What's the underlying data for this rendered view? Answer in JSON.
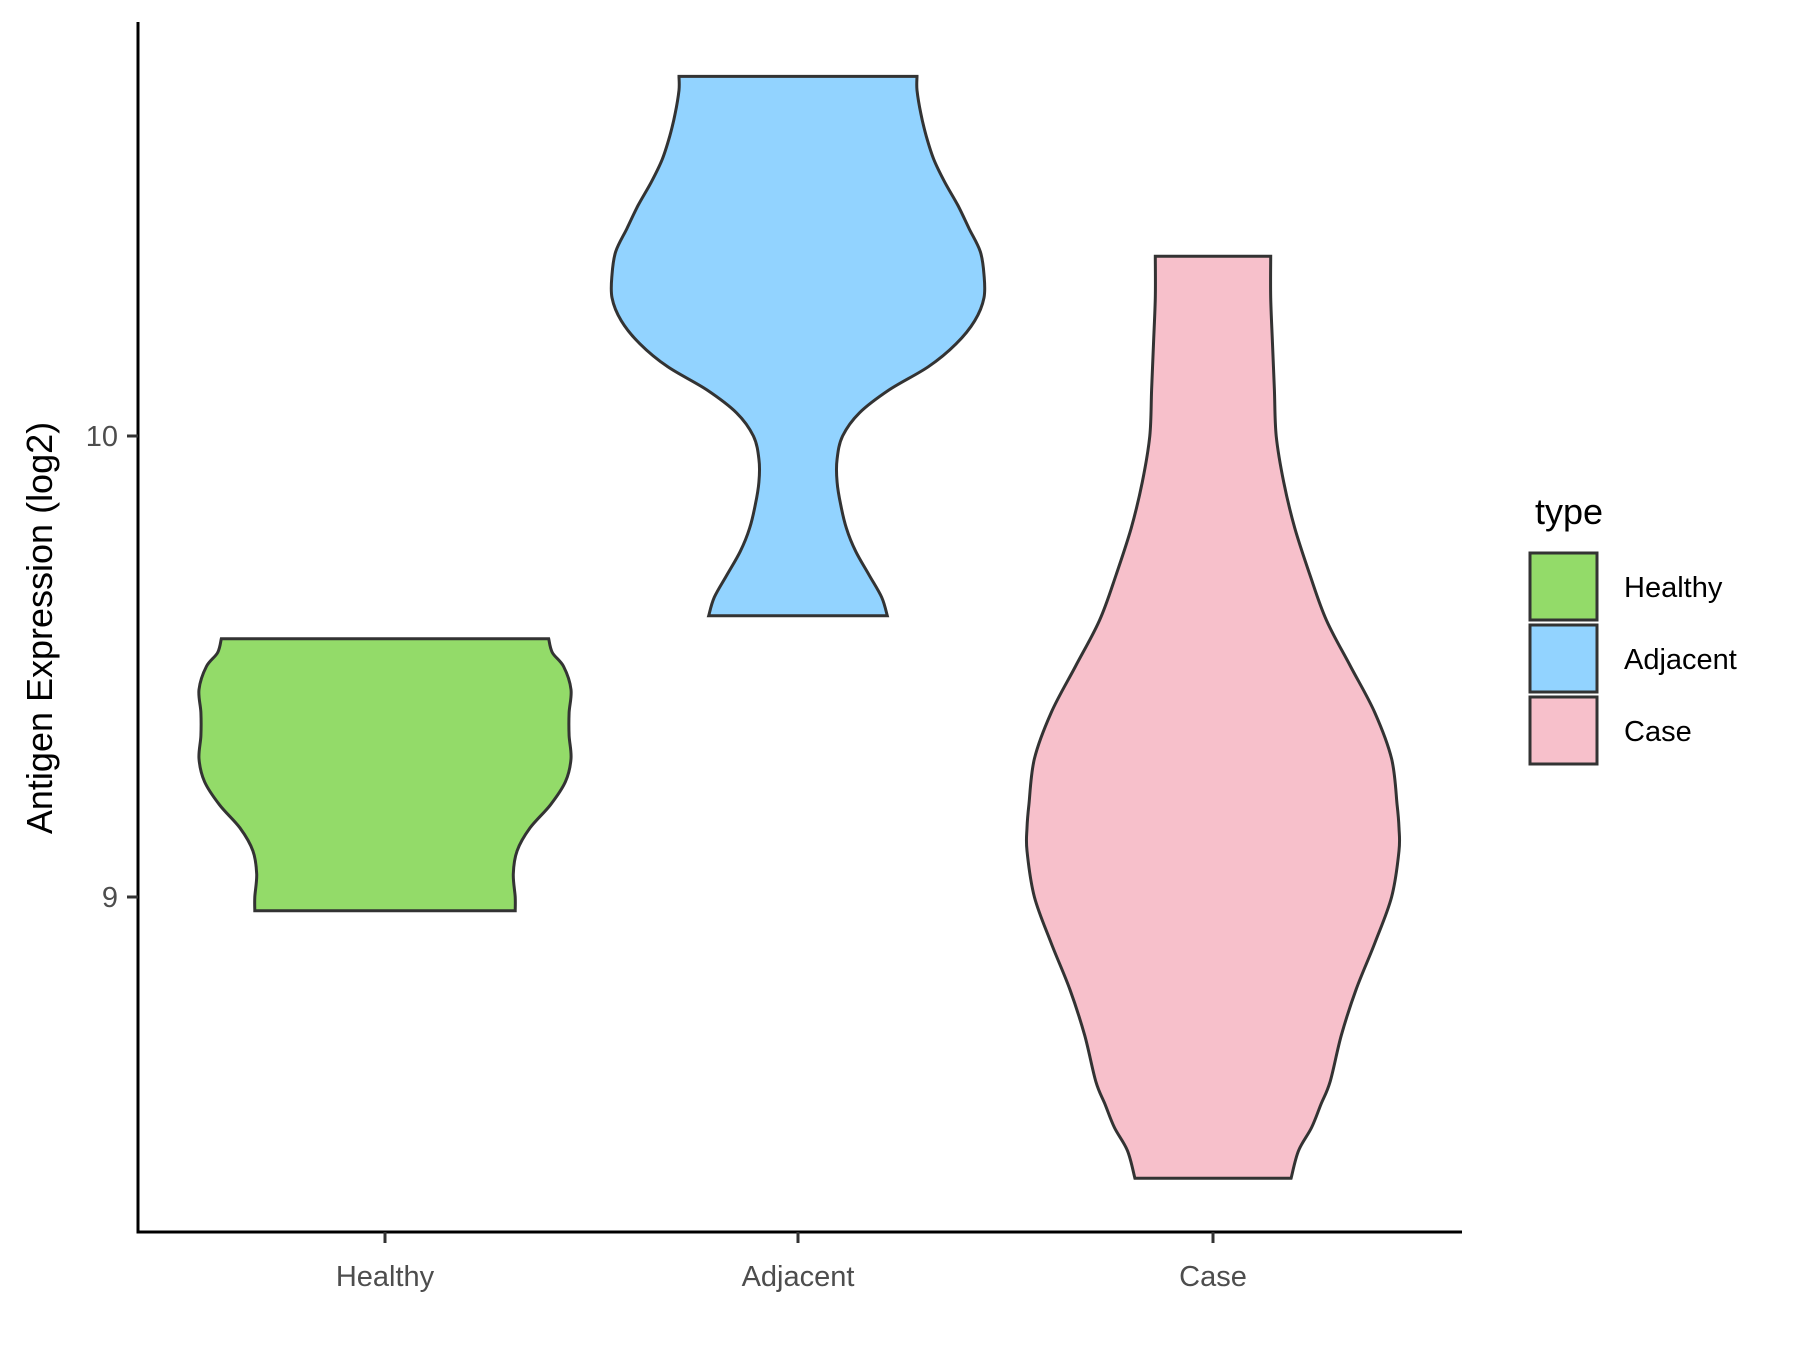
{
  "chart_data": {
    "type": "violin",
    "title": "",
    "xlabel": "",
    "ylabel": "Antigen Expression (log2)",
    "ylim": [
      8.27,
      10.89
    ],
    "yticks": [
      9,
      10
    ],
    "categories": [
      "Healthy",
      "Adjacent",
      "Case"
    ],
    "legend": {
      "title": "type",
      "placement": "right",
      "entries": [
        "Healthy",
        "Adjacent",
        "Case"
      ]
    },
    "colors": {
      "Healthy": "#93DB69",
      "Adjacent": "#92D3FF",
      "Case": "#F7C0CB",
      "outline": "#333333"
    },
    "violins": [
      {
        "category": "Healthy",
        "min": 8.97,
        "max": 9.56,
        "profile": [
          [
            8.97,
            0.7
          ],
          [
            9.0,
            0.7
          ],
          [
            9.05,
            0.69
          ],
          [
            9.1,
            0.71
          ],
          [
            9.15,
            0.78
          ],
          [
            9.2,
            0.89
          ],
          [
            9.25,
            0.97
          ],
          [
            9.3,
            1.0
          ],
          [
            9.35,
            0.99
          ],
          [
            9.4,
            0.99
          ],
          [
            9.45,
            1.0
          ],
          [
            9.5,
            0.96
          ],
          [
            9.53,
            0.9
          ],
          [
            9.56,
            0.88
          ]
        ]
      },
      {
        "category": "Adjacent",
        "min": 9.61,
        "max": 10.78,
        "profile": [
          [
            9.61,
            0.48
          ],
          [
            9.65,
            0.45
          ],
          [
            9.7,
            0.38
          ],
          [
            9.75,
            0.31
          ],
          [
            9.8,
            0.26
          ],
          [
            9.85,
            0.23
          ],
          [
            9.9,
            0.21
          ],
          [
            9.95,
            0.21
          ],
          [
            10.0,
            0.24
          ],
          [
            10.05,
            0.33
          ],
          [
            10.1,
            0.49
          ],
          [
            10.15,
            0.7
          ],
          [
            10.2,
            0.85
          ],
          [
            10.25,
            0.95
          ],
          [
            10.3,
            1.0
          ],
          [
            10.35,
            1.0
          ],
          [
            10.4,
            0.98
          ],
          [
            10.45,
            0.92
          ],
          [
            10.5,
            0.86
          ],
          [
            10.55,
            0.79
          ],
          [
            10.6,
            0.73
          ],
          [
            10.65,
            0.69
          ],
          [
            10.7,
            0.66
          ],
          [
            10.75,
            0.64
          ],
          [
            10.78,
            0.64
          ]
        ]
      },
      {
        "category": "Case",
        "min": 8.39,
        "max": 10.39,
        "profile": [
          [
            8.39,
            0.42
          ],
          [
            8.45,
            0.46
          ],
          [
            8.5,
            0.53
          ],
          [
            8.55,
            0.58
          ],
          [
            8.6,
            0.63
          ],
          [
            8.7,
            0.69
          ],
          [
            8.8,
            0.77
          ],
          [
            8.9,
            0.87
          ],
          [
            9.0,
            0.96
          ],
          [
            9.1,
            1.0
          ],
          [
            9.15,
            1.0
          ],
          [
            9.2,
            0.99
          ],
          [
            9.3,
            0.96
          ],
          [
            9.4,
            0.87
          ],
          [
            9.5,
            0.74
          ],
          [
            9.6,
            0.61
          ],
          [
            9.7,
            0.52
          ],
          [
            9.8,
            0.44
          ],
          [
            9.9,
            0.38
          ],
          [
            10.0,
            0.34
          ],
          [
            10.1,
            0.33
          ],
          [
            10.2,
            0.32
          ],
          [
            10.3,
            0.31
          ],
          [
            10.39,
            0.31
          ]
        ]
      }
    ]
  }
}
